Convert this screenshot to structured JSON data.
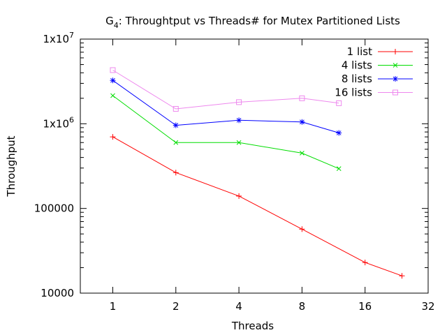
{
  "chart_data": {
    "type": "line",
    "title": "G4: Throughtput vs Threads# for Mutex Partitioned Lists",
    "title_base": "G",
    "title_subscript": "4",
    "title_rest": ": Throughtput vs Threads# for Mutex Partitioned Lists",
    "xlabel": "Threads",
    "ylabel": "Throughput",
    "x_scale": "log2",
    "y_scale": "log10",
    "xlim": [
      0.7,
      32
    ],
    "ylim": [
      10000,
      10000000
    ],
    "x_ticks": [
      {
        "value": 1,
        "label": "1"
      },
      {
        "value": 2,
        "label": "2"
      },
      {
        "value": 4,
        "label": "4"
      },
      {
        "value": 8,
        "label": "8"
      },
      {
        "value": 16,
        "label": "16"
      },
      {
        "value": 32,
        "label": "32"
      }
    ],
    "y_ticks": [
      {
        "value": 10000,
        "label": "10000",
        "type": "plain"
      },
      {
        "value": 100000,
        "label": "100000",
        "type": "plain"
      },
      {
        "value": 1000000,
        "label": "1x10",
        "exp": "6",
        "type": "exp"
      },
      {
        "value": 10000000,
        "label": "1x10",
        "exp": "7",
        "type": "exp"
      }
    ],
    "grid": false,
    "legend_position": "top-right",
    "series": [
      {
        "name": "1 list",
        "color": "#ff0000",
        "marker": "plus",
        "x": [
          1,
          2,
          4,
          8,
          16,
          24
        ],
        "y": [
          700000,
          265000,
          140000,
          57000,
          23000,
          16000
        ]
      },
      {
        "name": "4 lists",
        "color": "#00dd00",
        "marker": "cross",
        "x": [
          1,
          2,
          4,
          8,
          12
        ],
        "y": [
          2150000,
          600000,
          600000,
          450000,
          295000
        ]
      },
      {
        "name": "8 lists",
        "color": "#0000ff",
        "marker": "star",
        "x": [
          1,
          2,
          4,
          8,
          12
        ],
        "y": [
          3250000,
          960000,
          1100000,
          1050000,
          780000
        ]
      },
      {
        "name": "16 lists",
        "color": "#ee88ee",
        "marker": "square",
        "x": [
          1,
          2,
          4,
          8,
          12
        ],
        "y": [
          4300000,
          1500000,
          1800000,
          2000000,
          1750000
        ]
      }
    ]
  }
}
